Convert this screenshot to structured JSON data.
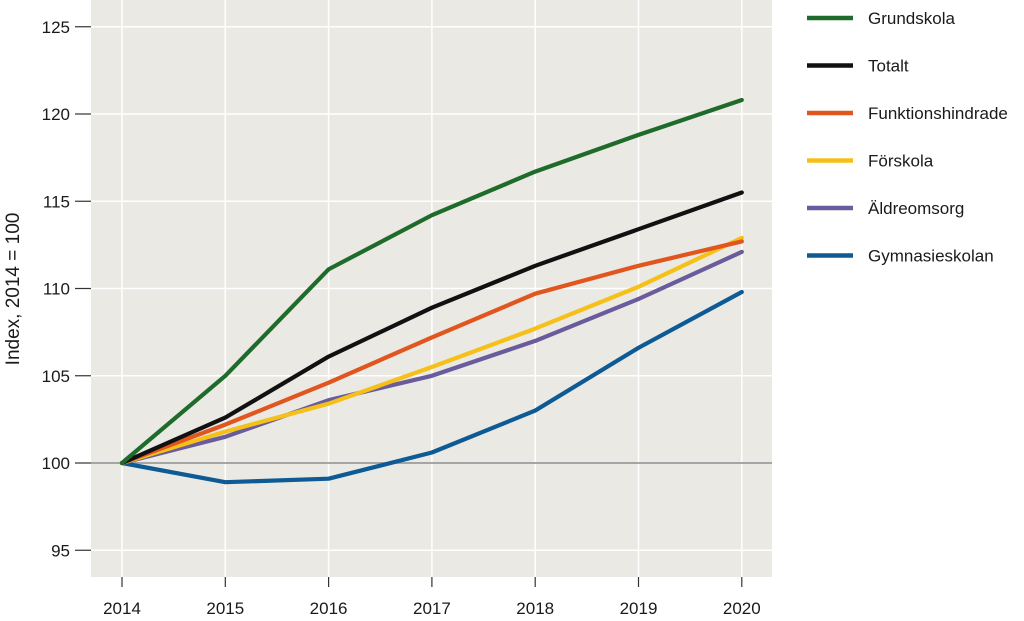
{
  "chart_data": {
    "type": "line",
    "title": "",
    "xlabel": "",
    "ylabel": "Index, 2014 = 100",
    "x": [
      "2014",
      "2015",
      "2016",
      "2017",
      "2018",
      "2019",
      "2020"
    ],
    "ylim": [
      93,
      126
    ],
    "yticks": [
      "95",
      "100",
      "105",
      "110",
      "115",
      "120",
      "125"
    ],
    "reference_line": 100,
    "grid": true,
    "legend_position": "right",
    "series": [
      {
        "name": "Grundskola",
        "color": "#1e6b2b",
        "values": [
          100,
          105.0,
          111.1,
          114.2,
          116.7,
          118.8,
          120.8
        ]
      },
      {
        "name": "Totalt",
        "color": "#111111",
        "values": [
          100,
          102.6,
          106.1,
          108.9,
          111.3,
          113.4,
          115.5
        ]
      },
      {
        "name": "Funktionshindrade",
        "color": "#e0561e",
        "values": [
          100,
          102.2,
          104.6,
          107.2,
          109.7,
          111.3,
          112.7
        ]
      },
      {
        "name": "Förskola",
        "color": "#f5c018",
        "values": [
          100,
          101.8,
          103.4,
          105.5,
          107.7,
          110.1,
          112.9
        ]
      },
      {
        "name": "Äldreomsorg",
        "color": "#6a5c9c",
        "values": [
          100,
          101.5,
          103.6,
          105.0,
          107.0,
          109.4,
          112.1
        ]
      },
      {
        "name": "Gymnasieskolan",
        "color": "#0d5a94",
        "values": [
          100,
          98.9,
          99.1,
          100.6,
          103.0,
          106.6,
          109.8
        ]
      }
    ]
  },
  "colors": {
    "plot_background": "#ebe9e3",
    "grid": "#ffffff",
    "reference_line": "#9a9a9a"
  }
}
